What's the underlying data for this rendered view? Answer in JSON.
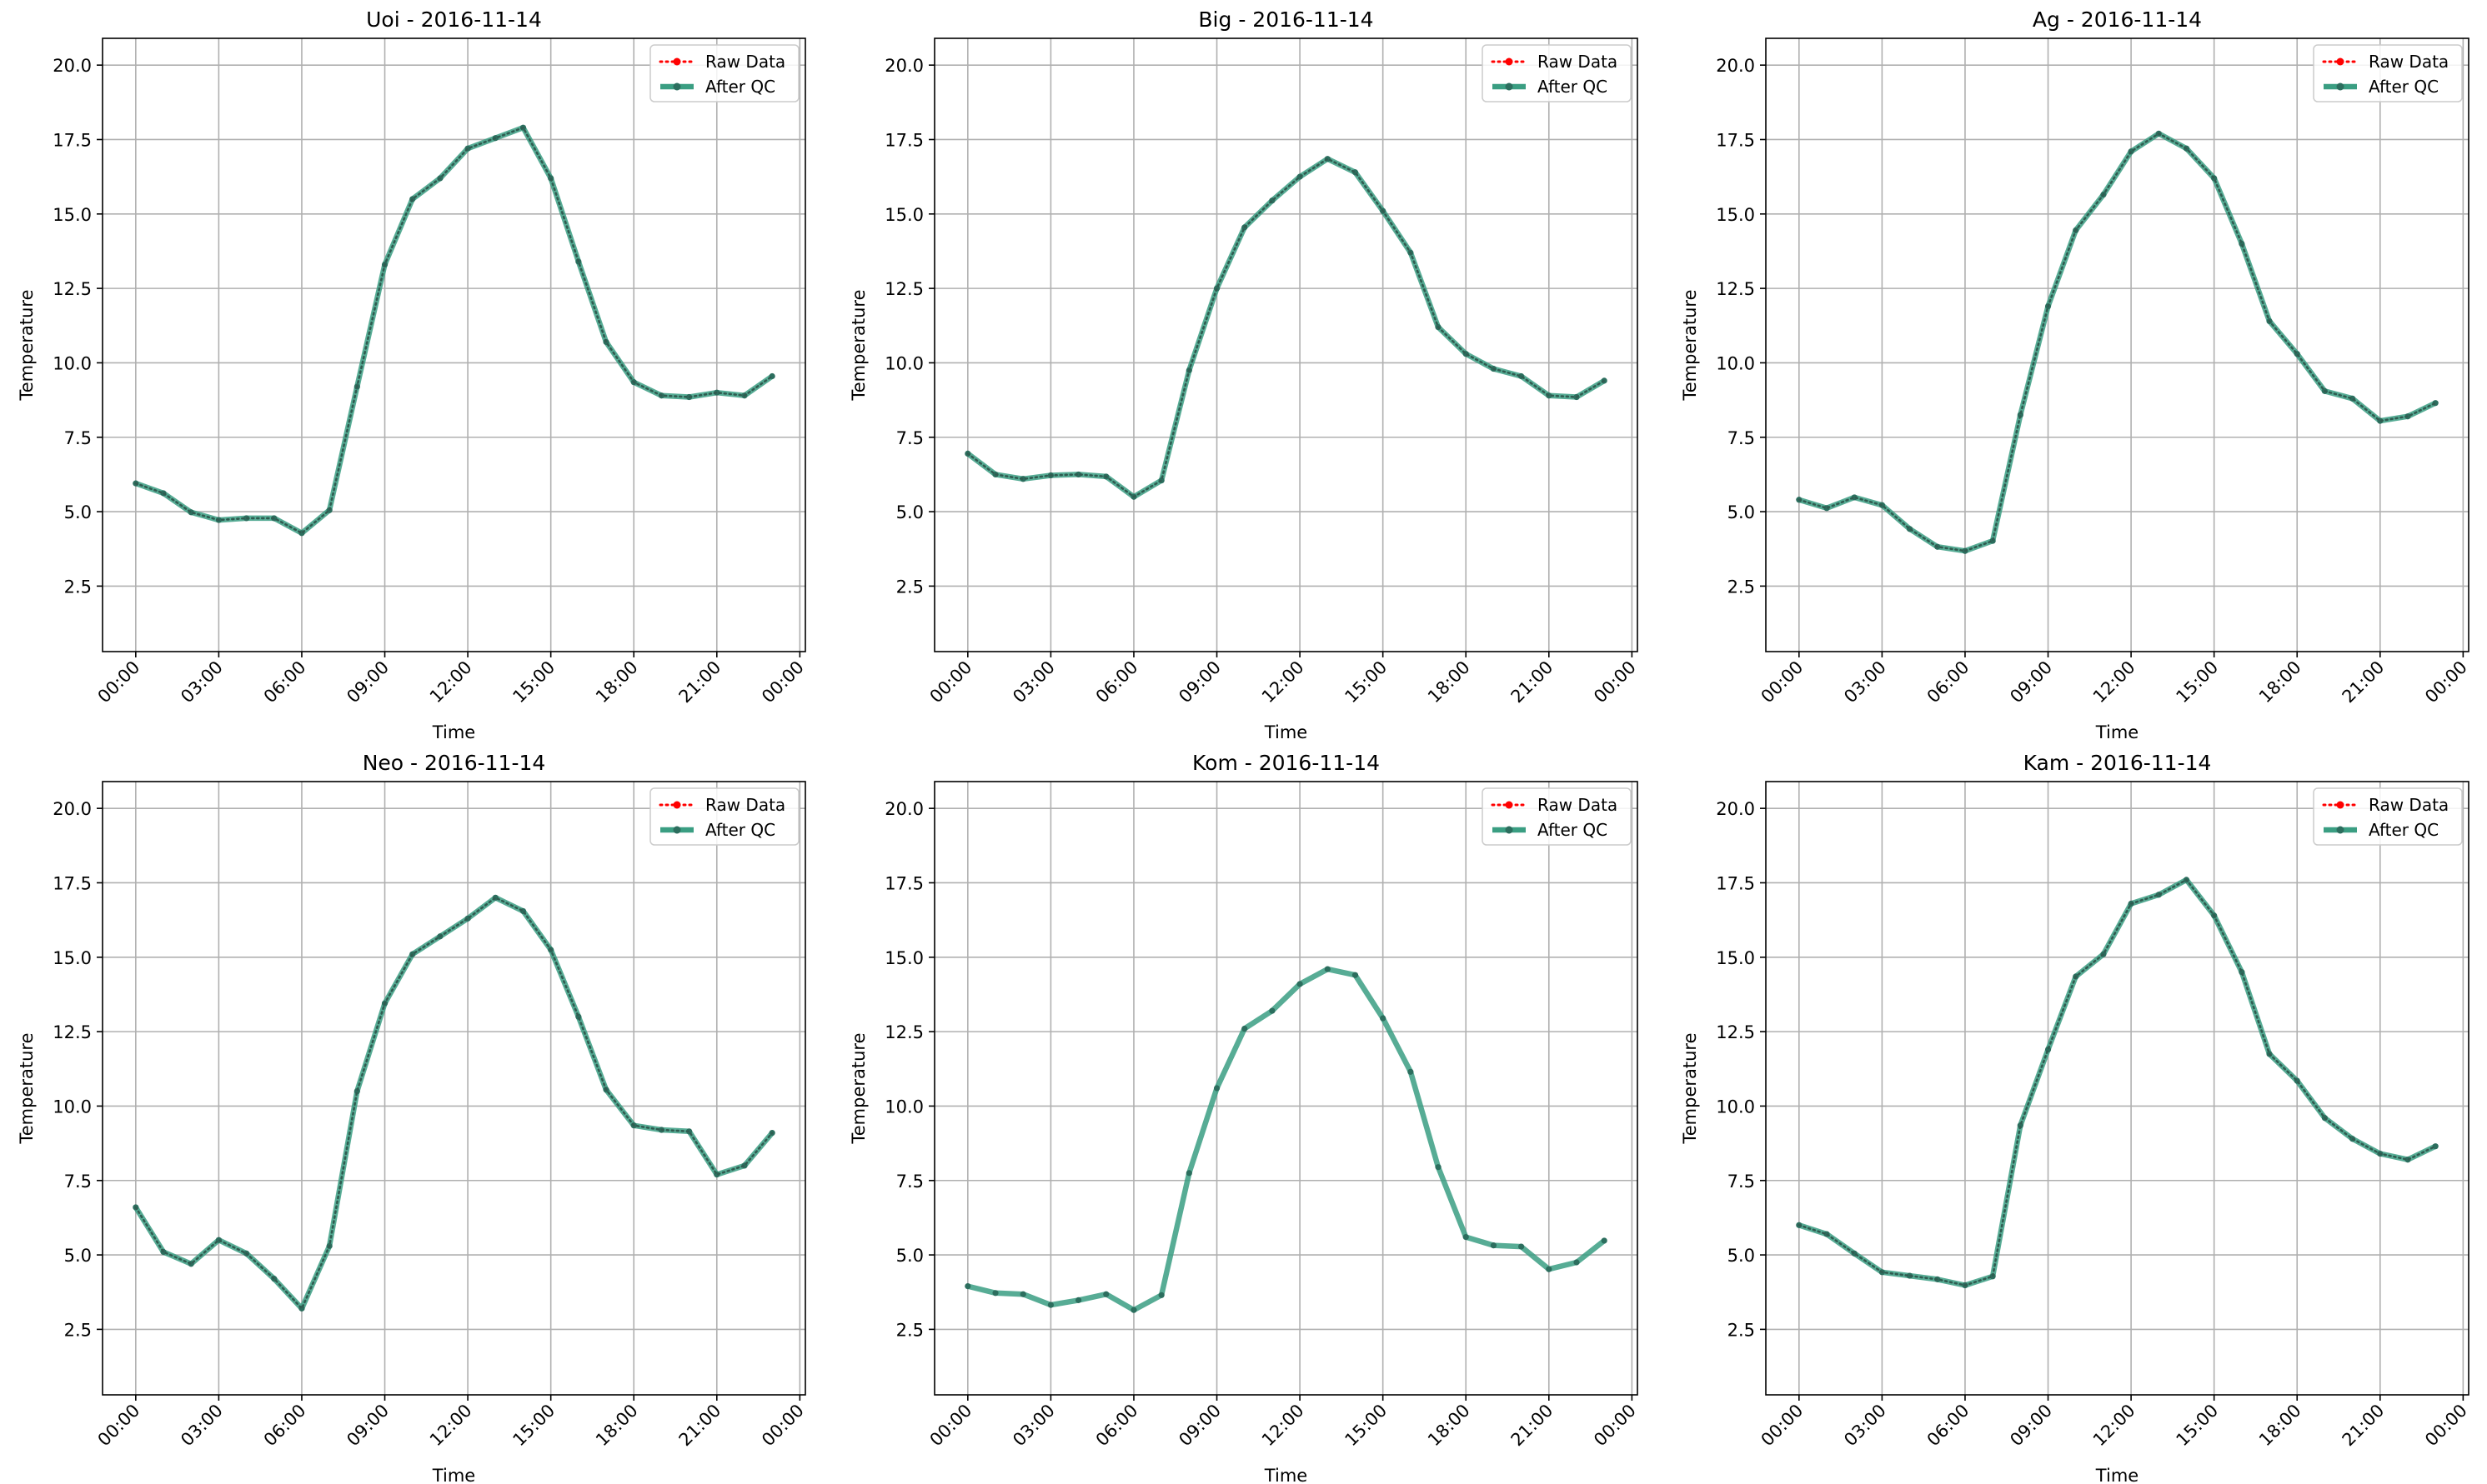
{
  "figure": {
    "legend": {
      "raw_label": "Raw Data",
      "qc_label": "After QC",
      "placement": "upper right"
    },
    "raw_color": "#ff0000",
    "qc_color": "#3a9e82",
    "point_color": "#2c6e5e",
    "grid_color": "#b0b0b0"
  },
  "chart_data": [
    {
      "type": "line",
      "title": "Uoi - 2016-11-14",
      "xlabel": "Time",
      "ylabel": "Temperature",
      "ylim": [
        0.3,
        20.9
      ],
      "yticks": [
        2.5,
        5.0,
        7.5,
        10.0,
        12.5,
        15.0,
        17.5,
        20.0
      ],
      "ytick_labels": [
        "2.5",
        "5.0",
        "7.5",
        "10.0",
        "12.5",
        "15.0",
        "17.5",
        "20.0"
      ],
      "xlim_hours": [
        -1.2,
        24.2
      ],
      "xtick_labels": [
        "00:00",
        "03:00",
        "06:00",
        "09:00",
        "12:00",
        "15:00",
        "18:00",
        "21:00",
        "00:00"
      ],
      "grid": true,
      "legend": "top-right",
      "x_hours": [
        0,
        1,
        2,
        3,
        4,
        5,
        6,
        7,
        8,
        9,
        10,
        11,
        12,
        13,
        14,
        15,
        16,
        17,
        18,
        19,
        20,
        21,
        22,
        23
      ],
      "series": [
        {
          "name": "Raw Data",
          "style": "dotted",
          "values": [
            5.95,
            5.62,
            4.98,
            4.72,
            4.78,
            4.78,
            4.28,
            5.05,
            9.2,
            13.3,
            15.5,
            16.2,
            17.2,
            17.55,
            17.9,
            16.2,
            13.4,
            10.7,
            9.35,
            8.9,
            8.85,
            9.0,
            8.9,
            9.55
          ]
        },
        {
          "name": "After QC",
          "style": "solid",
          "values": [
            5.95,
            5.62,
            4.98,
            4.72,
            4.78,
            4.78,
            4.28,
            5.05,
            9.2,
            13.3,
            15.5,
            16.2,
            17.2,
            17.55,
            17.9,
            16.2,
            13.4,
            10.7,
            9.35,
            8.9,
            8.85,
            9.0,
            8.9,
            9.55
          ]
        }
      ]
    },
    {
      "type": "line",
      "title": "Big - 2016-11-14",
      "xlabel": "Time",
      "ylabel": "Temperature",
      "ylim": [
        0.3,
        20.9
      ],
      "yticks": [
        2.5,
        5.0,
        7.5,
        10.0,
        12.5,
        15.0,
        17.5,
        20.0
      ],
      "ytick_labels": [
        "2.5",
        "5.0",
        "7.5",
        "10.0",
        "12.5",
        "15.0",
        "17.5",
        "20.0"
      ],
      "xlim_hours": [
        -1.2,
        24.2
      ],
      "xtick_labels": [
        "00:00",
        "03:00",
        "06:00",
        "09:00",
        "12:00",
        "15:00",
        "18:00",
        "21:00",
        "00:00"
      ],
      "grid": true,
      "legend": "top-right",
      "x_hours": [
        0,
        1,
        2,
        3,
        4,
        5,
        6,
        7,
        8,
        9,
        10,
        11,
        12,
        13,
        14,
        15,
        16,
        17,
        18,
        19,
        20,
        21,
        22,
        23
      ],
      "series": [
        {
          "name": "Raw Data",
          "style": "dotted",
          "values": [
            6.95,
            6.25,
            6.1,
            6.22,
            6.25,
            6.18,
            5.5,
            6.05,
            9.75,
            12.5,
            14.55,
            15.45,
            16.25,
            16.85,
            16.4,
            15.1,
            13.7,
            11.2,
            10.3,
            9.8,
            9.55,
            8.9,
            8.85,
            9.4
          ]
        },
        {
          "name": "After QC",
          "style": "solid",
          "values": [
            6.95,
            6.25,
            6.1,
            6.22,
            6.25,
            6.18,
            5.5,
            6.05,
            9.75,
            12.5,
            14.55,
            15.45,
            16.25,
            16.85,
            16.4,
            15.1,
            13.7,
            11.2,
            10.3,
            9.8,
            9.55,
            8.9,
            8.85,
            9.4
          ]
        }
      ]
    },
    {
      "type": "line",
      "title": "Ag - 2016-11-14",
      "xlabel": "Time",
      "ylabel": "Temperature",
      "ylim": [
        0.3,
        20.9
      ],
      "yticks": [
        2.5,
        5.0,
        7.5,
        10.0,
        12.5,
        15.0,
        17.5,
        20.0
      ],
      "ytick_labels": [
        "2.5",
        "5.0",
        "7.5",
        "10.0",
        "12.5",
        "15.0",
        "17.5",
        "20.0"
      ],
      "xlim_hours": [
        -1.2,
        24.2
      ],
      "xtick_labels": [
        "00:00",
        "03:00",
        "06:00",
        "09:00",
        "12:00",
        "15:00",
        "18:00",
        "21:00",
        "00:00"
      ],
      "grid": true,
      "legend": "top-right",
      "x_hours": [
        0,
        1,
        2,
        3,
        4,
        5,
        6,
        7,
        8,
        9,
        10,
        11,
        12,
        13,
        14,
        15,
        16,
        17,
        18,
        19,
        20,
        21,
        22,
        23
      ],
      "series": [
        {
          "name": "Raw Data",
          "style": "dotted",
          "values": [
            5.4,
            5.12,
            5.48,
            5.22,
            4.42,
            3.82,
            3.68,
            4.02,
            8.25,
            11.9,
            14.45,
            15.65,
            17.1,
            17.7,
            17.2,
            16.2,
            14.0,
            11.4,
            10.3,
            9.05,
            8.8,
            8.05,
            8.2,
            8.65
          ]
        },
        {
          "name": "After QC",
          "style": "solid",
          "values": [
            5.4,
            5.12,
            5.48,
            5.22,
            4.42,
            3.82,
            3.68,
            4.02,
            8.25,
            11.9,
            14.45,
            15.65,
            17.1,
            17.7,
            17.2,
            16.2,
            14.0,
            11.4,
            10.3,
            9.05,
            8.8,
            8.05,
            8.2,
            8.65
          ]
        }
      ]
    },
    {
      "type": "line",
      "title": "Neo - 2016-11-14",
      "xlabel": "Time",
      "ylabel": "Temperature",
      "ylim": [
        0.3,
        20.9
      ],
      "yticks": [
        2.5,
        5.0,
        7.5,
        10.0,
        12.5,
        15.0,
        17.5,
        20.0
      ],
      "ytick_labels": [
        "2.5",
        "5.0",
        "7.5",
        "10.0",
        "12.5",
        "15.0",
        "17.5",
        "20.0"
      ],
      "xlim_hours": [
        -1.2,
        24.2
      ],
      "xtick_labels": [
        "00:00",
        "03:00",
        "06:00",
        "09:00",
        "12:00",
        "15:00",
        "18:00",
        "21:00",
        "00:00"
      ],
      "grid": true,
      "legend": "top-right",
      "x_hours": [
        0,
        1,
        2,
        3,
        4,
        5,
        6,
        7,
        8,
        9,
        10,
        11,
        12,
        13,
        14,
        15,
        16,
        17,
        18,
        19,
        20,
        21,
        22,
        23
      ],
      "series": [
        {
          "name": "Raw Data",
          "style": "dotted",
          "values": [
            6.6,
            5.1,
            4.7,
            5.5,
            5.05,
            4.2,
            3.2,
            5.3,
            10.5,
            13.45,
            15.1,
            15.7,
            16.3,
            17.0,
            16.55,
            15.25,
            13.0,
            10.55,
            9.35,
            9.2,
            9.15,
            7.7,
            8.0,
            9.1
          ]
        },
        {
          "name": "After QC",
          "style": "solid",
          "values": [
            6.6,
            5.1,
            4.7,
            5.5,
            5.05,
            4.2,
            3.2,
            5.3,
            10.5,
            13.45,
            15.1,
            15.7,
            16.3,
            17.0,
            16.55,
            15.25,
            13.0,
            10.55,
            9.35,
            9.2,
            9.15,
            7.7,
            8.0,
            9.1
          ]
        }
      ]
    },
    {
      "type": "line",
      "title": "Kom - 2016-11-14",
      "xlabel": "Time",
      "ylabel": "Temperature",
      "ylim": [
        0.3,
        20.9
      ],
      "yticks": [
        2.5,
        5.0,
        7.5,
        10.0,
        12.5,
        15.0,
        17.5,
        20.0
      ],
      "ytick_labels": [
        "2.5",
        "5.0",
        "7.5",
        "10.0",
        "12.5",
        "15.0",
        "17.5",
        "20.0"
      ],
      "xlim_hours": [
        -1.2,
        24.2
      ],
      "xtick_labels": [
        "00:00",
        "03:00",
        "06:00",
        "09:00",
        "12:00",
        "15:00",
        "18:00",
        "21:00",
        "00:00"
      ],
      "grid": true,
      "legend": "top-right",
      "x_hours": [
        0,
        1,
        2,
        3,
        4,
        5,
        6,
        7,
        8,
        9,
        10,
        11,
        12,
        13,
        14,
        15,
        16,
        17,
        18,
        19,
        20,
        21,
        22,
        23
      ],
      "series": [
        {
          "name": "Raw Data",
          "style": "dotted",
          "values": []
        },
        {
          "name": "After QC",
          "style": "solid",
          "values": [
            3.95,
            3.72,
            3.68,
            3.32,
            3.48,
            3.68,
            3.15,
            3.65,
            7.75,
            10.6,
            12.6,
            13.2,
            14.1,
            14.6,
            14.4,
            12.95,
            11.15,
            7.95,
            5.6,
            5.32,
            5.28,
            4.52,
            4.75,
            5.48
          ]
        }
      ]
    },
    {
      "type": "line",
      "title": "Kam - 2016-11-14",
      "xlabel": "Time",
      "ylabel": "Temperature",
      "ylim": [
        0.3,
        20.9
      ],
      "yticks": [
        2.5,
        5.0,
        7.5,
        10.0,
        12.5,
        15.0,
        17.5,
        20.0
      ],
      "ytick_labels": [
        "2.5",
        "5.0",
        "7.5",
        "10.0",
        "12.5",
        "15.0",
        "17.5",
        "20.0"
      ],
      "xlim_hours": [
        -1.2,
        24.2
      ],
      "xtick_labels": [
        "00:00",
        "03:00",
        "06:00",
        "09:00",
        "12:00",
        "15:00",
        "18:00",
        "21:00",
        "00:00"
      ],
      "grid": true,
      "legend": "top-right",
      "x_hours": [
        0,
        1,
        2,
        3,
        4,
        5,
        6,
        7,
        8,
        9,
        10,
        11,
        12,
        13,
        14,
        15,
        16,
        17,
        18,
        19,
        20,
        21,
        22,
        23
      ],
      "series": [
        {
          "name": "Raw Data",
          "style": "dotted",
          "values": [
            6.0,
            5.7,
            5.05,
            4.42,
            4.3,
            4.18,
            3.98,
            4.28,
            9.35,
            11.9,
            14.35,
            15.1,
            16.8,
            17.1,
            17.6,
            16.4,
            14.5,
            11.75,
            10.85,
            9.6,
            8.9,
            8.4,
            8.2,
            8.65
          ]
        },
        {
          "name": "After QC",
          "style": "solid",
          "values": [
            6.0,
            5.7,
            5.05,
            4.42,
            4.3,
            4.18,
            3.98,
            4.28,
            9.35,
            11.9,
            14.35,
            15.1,
            16.8,
            17.1,
            17.6,
            16.4,
            14.5,
            11.75,
            10.85,
            9.6,
            8.9,
            8.4,
            8.2,
            8.65
          ]
        }
      ]
    }
  ]
}
